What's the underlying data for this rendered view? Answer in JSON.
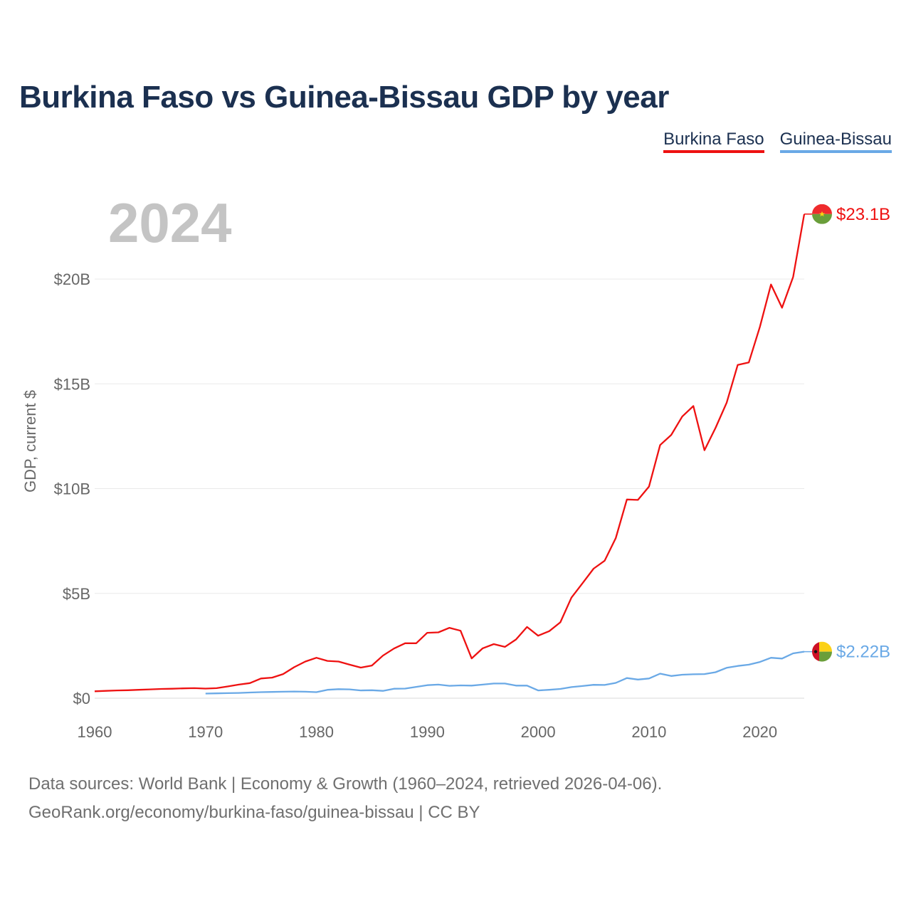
{
  "title": "Burkina Faso vs Guinea-Bissau GDP by year",
  "legend": {
    "burkina": "Burkina Faso",
    "guinea": "Guinea-Bissau"
  },
  "year_label": "2024",
  "footer": {
    "line1": "Data sources: World Bank | Economy & Growth (1960–2024, retrieved 2026-04-06).",
    "line2": "GeoRank.org/economy/burkina-faso/guinea-bissau | CC BY"
  },
  "colors": {
    "burkina": "#ee1111",
    "guinea": "#6aa9e6"
  },
  "chart_data": {
    "type": "line",
    "title": "Burkina Faso vs Guinea-Bissau GDP by year",
    "xlabel": "",
    "ylabel": "GDP, current $",
    "xlim": [
      1960,
      2024
    ],
    "ylim": [
      0,
      23.5
    ],
    "x_ticks": [
      1960,
      1970,
      1980,
      1990,
      2000,
      2010,
      2020
    ],
    "x_tick_labels": [
      "1960",
      "1970",
      "1980",
      "1990",
      "2000",
      "2010",
      "2020"
    ],
    "y_ticks": [
      0,
      5,
      10,
      15,
      20
    ],
    "y_tick_labels": [
      "$0",
      "$5B",
      "$10B",
      "$15B",
      "$20B"
    ],
    "grid": true,
    "series": [
      {
        "name": "Burkina Faso",
        "color": "#ee1111",
        "end_label": "$23.1B",
        "x": [
          1960,
          1961,
          1962,
          1963,
          1964,
          1965,
          1966,
          1967,
          1968,
          1969,
          1970,
          1971,
          1972,
          1973,
          1974,
          1975,
          1976,
          1977,
          1978,
          1979,
          1980,
          1981,
          1982,
          1983,
          1984,
          1985,
          1986,
          1987,
          1988,
          1989,
          1990,
          1991,
          1992,
          1993,
          1994,
          1995,
          1996,
          1997,
          1998,
          1999,
          2000,
          2001,
          2002,
          2003,
          2004,
          2005,
          2006,
          2007,
          2008,
          2009,
          2010,
          2011,
          2012,
          2013,
          2014,
          2015,
          2016,
          2017,
          2018,
          2019,
          2020,
          2021,
          2022,
          2023,
          2024
        ],
        "values": [
          0.33,
          0.35,
          0.37,
          0.38,
          0.4,
          0.42,
          0.44,
          0.45,
          0.47,
          0.48,
          0.46,
          0.48,
          0.56,
          0.65,
          0.72,
          0.94,
          0.98,
          1.15,
          1.48,
          1.75,
          1.93,
          1.78,
          1.75,
          1.6,
          1.46,
          1.56,
          2.03,
          2.37,
          2.62,
          2.62,
          3.12,
          3.14,
          3.36,
          3.22,
          1.9,
          2.38,
          2.58,
          2.45,
          2.8,
          3.4,
          2.98,
          3.2,
          3.62,
          4.8,
          5.48,
          6.18,
          6.56,
          7.64,
          9.48,
          9.46,
          10.1,
          12.08,
          12.56,
          13.44,
          13.94,
          11.83,
          12.9,
          14.1,
          15.9,
          16.02,
          17.72,
          19.74,
          18.63,
          20.1,
          23.1
        ]
      },
      {
        "name": "Guinea-Bissau",
        "color": "#6aa9e6",
        "end_label": "$2.22B",
        "x": [
          1970,
          1971,
          1972,
          1973,
          1974,
          1975,
          1976,
          1977,
          1978,
          1979,
          1980,
          1981,
          1982,
          1983,
          1984,
          1985,
          1986,
          1987,
          1988,
          1989,
          1990,
          1991,
          1992,
          1993,
          1994,
          1995,
          1996,
          1997,
          1998,
          1999,
          2000,
          2001,
          2002,
          2003,
          2004,
          2005,
          2006,
          2007,
          2008,
          2009,
          2010,
          2011,
          2012,
          2013,
          2014,
          2015,
          2016,
          2017,
          2018,
          2019,
          2020,
          2021,
          2022,
          2023,
          2024
        ],
        "values": [
          0.22,
          0.23,
          0.24,
          0.25,
          0.27,
          0.29,
          0.3,
          0.31,
          0.32,
          0.31,
          0.29,
          0.4,
          0.43,
          0.42,
          0.37,
          0.38,
          0.35,
          0.45,
          0.46,
          0.54,
          0.62,
          0.65,
          0.59,
          0.61,
          0.6,
          0.65,
          0.7,
          0.7,
          0.6,
          0.6,
          0.37,
          0.4,
          0.44,
          0.53,
          0.58,
          0.64,
          0.63,
          0.73,
          0.96,
          0.89,
          0.94,
          1.17,
          1.06,
          1.12,
          1.14,
          1.15,
          1.24,
          1.45,
          1.54,
          1.6,
          1.73,
          1.93,
          1.89,
          2.14,
          2.22
        ]
      }
    ]
  }
}
